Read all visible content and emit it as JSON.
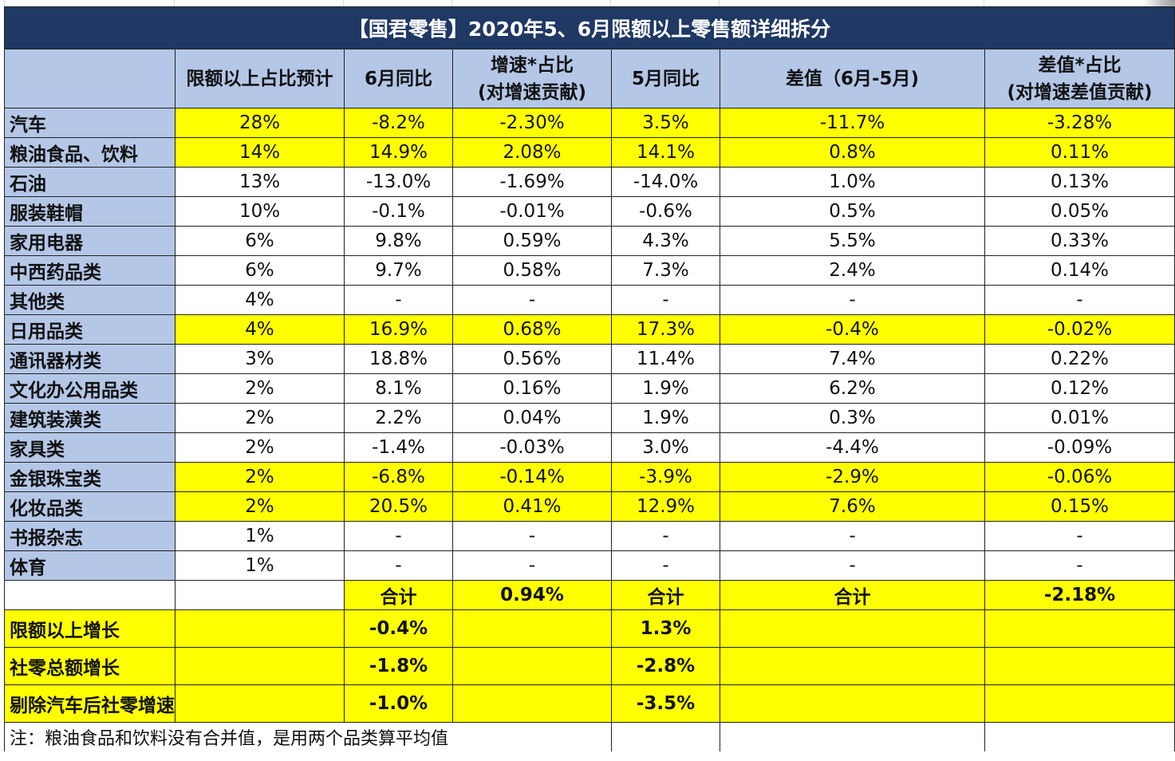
{
  "title": "【国君零售】2020年5、6月限额以上零售额详细拆分",
  "headers": {
    "share": "限额以上占比预计",
    "jun_yoy": "6月同比",
    "contrib_line1": "增速*占比",
    "contrib_line2": "(对增速贡献)",
    "may_yoy": "5月同比",
    "diff": "差值（6月-5月)",
    "diff_contrib_line1": "差值*占比",
    "diff_contrib_line2": "(对增速差值贡献)"
  },
  "rows": [
    {
      "name": "汽车",
      "share": "28%",
      "jun": "-8.2%",
      "contrib": "-2.30%",
      "may": "3.5%",
      "diff": "-11.7%",
      "diff_contrib": "-3.28%",
      "highlight": true
    },
    {
      "name": "粮油食品、饮料",
      "share": "14%",
      "jun": "14.9%",
      "contrib": "2.08%",
      "may": "14.1%",
      "diff": "0.8%",
      "diff_contrib": "0.11%",
      "highlight": true
    },
    {
      "name": "石油",
      "share": "13%",
      "jun": "-13.0%",
      "contrib": "-1.69%",
      "may": "-14.0%",
      "diff": "1.0%",
      "diff_contrib": "0.13%",
      "highlight": false
    },
    {
      "name": "服装鞋帽",
      "share": "10%",
      "jun": "-0.1%",
      "contrib": "-0.01%",
      "may": "-0.6%",
      "diff": "0.5%",
      "diff_contrib": "0.05%",
      "highlight": false
    },
    {
      "name": "家用电器",
      "share": "6%",
      "jun": "9.8%",
      "contrib": "0.59%",
      "may": "4.3%",
      "diff": "5.5%",
      "diff_contrib": "0.33%",
      "highlight": false
    },
    {
      "name": "中西药品类",
      "share": "6%",
      "jun": "9.7%",
      "contrib": "0.58%",
      "may": "7.3%",
      "diff": "2.4%",
      "diff_contrib": "0.14%",
      "highlight": false
    },
    {
      "name": "其他类",
      "share": "4%",
      "jun": "-",
      "contrib": "-",
      "may": "-",
      "diff": "-",
      "diff_contrib": "-",
      "highlight": false
    },
    {
      "name": "日用品类",
      "share": "4%",
      "jun": "16.9%",
      "contrib": "0.68%",
      "may": "17.3%",
      "diff": "-0.4%",
      "diff_contrib": "-0.02%",
      "highlight": true
    },
    {
      "name": "通讯器材类",
      "share": "3%",
      "jun": "18.8%",
      "contrib": "0.56%",
      "may": "11.4%",
      "diff": "7.4%",
      "diff_contrib": "0.22%",
      "highlight": false
    },
    {
      "name": "文化办公用品类",
      "share": "2%",
      "jun": "8.1%",
      "contrib": "0.16%",
      "may": "1.9%",
      "diff": "6.2%",
      "diff_contrib": "0.12%",
      "highlight": false
    },
    {
      "name": "建筑装潢类",
      "share": "2%",
      "jun": "2.2%",
      "contrib": "0.04%",
      "may": "1.9%",
      "diff": "0.3%",
      "diff_contrib": "0.01%",
      "highlight": false
    },
    {
      "name": "家具类",
      "share": "2%",
      "jun": "-1.4%",
      "contrib": "-0.03%",
      "may": "3.0%",
      "diff": "-4.4%",
      "diff_contrib": "-0.09%",
      "highlight": false
    },
    {
      "name": "金银珠宝类",
      "share": "2%",
      "jun": "-6.8%",
      "contrib": "-0.14%",
      "may": "-3.9%",
      "diff": "-2.9%",
      "diff_contrib": "-0.06%",
      "highlight": true
    },
    {
      "name": "化妆品类",
      "share": "2%",
      "jun": "20.5%",
      "contrib": "0.41%",
      "may": "12.9%",
      "diff": "7.6%",
      "diff_contrib": "0.15%",
      "highlight": true
    },
    {
      "name": "书报杂志",
      "share": "1%",
      "jun": "-",
      "contrib": "-",
      "may": "-",
      "diff": "-",
      "diff_contrib": "-",
      "highlight": false
    },
    {
      "name": "体育",
      "share": "1%",
      "jun": "-",
      "contrib": "-",
      "may": "-",
      "diff": "-",
      "diff_contrib": "-",
      "highlight": false
    }
  ],
  "totals": {
    "label1": "合计",
    "contrib_total": "0.94%",
    "label2": "合计",
    "label3": "合计",
    "diff_contrib_total": "-2.18%"
  },
  "summary": [
    {
      "name": "限额以上增长",
      "jun": "-0.4%",
      "may": "1.3%"
    },
    {
      "name": "社零总额增长",
      "jun": "-1.8%",
      "may": "-2.8%"
    },
    {
      "name": "剔除汽车后社零增速",
      "jun": "-1.0%",
      "may": "-3.5%"
    }
  ],
  "note": "注：粮油食品和饮料没有合并值，是用两个品类算平均值",
  "colors": {
    "title_bg": "#1f3864",
    "header_bg": "#b4c7e7",
    "highlight": "#ffff00"
  }
}
